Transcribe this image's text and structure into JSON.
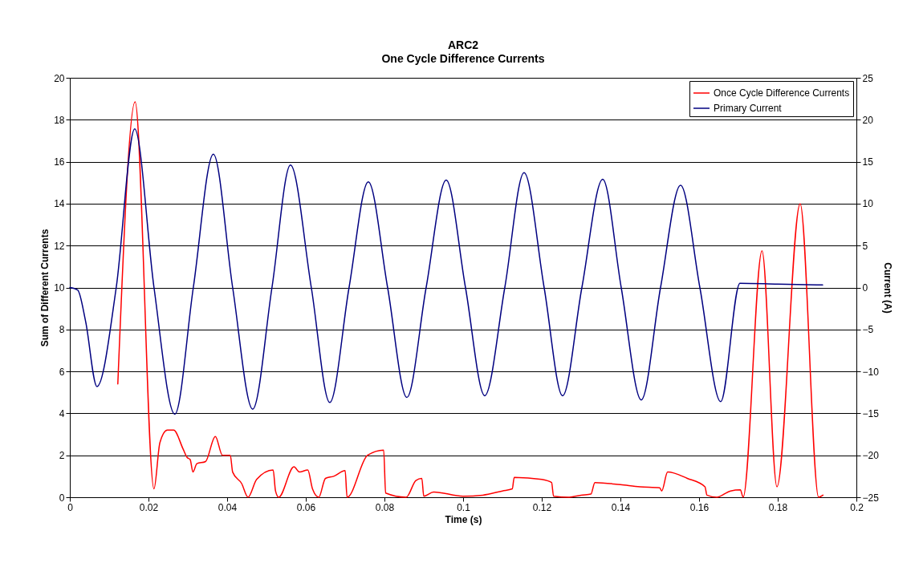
{
  "chart_data": {
    "type": "line",
    "title": "ARC2",
    "subtitle": "One Cycle Difference Currents",
    "xlabel": "Time (s)",
    "ylabel": "Sum of Different Currents",
    "y2label": "Current (A)",
    "xlim": [
      0,
      0.2
    ],
    "xticks": [
      0,
      0.02,
      0.04,
      0.06,
      0.08,
      0.1,
      0.12,
      0.14,
      0.16,
      0.18,
      0.2
    ],
    "ylim": [
      0,
      20
    ],
    "yticks": [
      0,
      2,
      4,
      6,
      8,
      10,
      12,
      14,
      16,
      18,
      20
    ],
    "y2lim": [
      -25,
      25
    ],
    "y2ticks": [
      -25,
      -20,
      -15,
      -10,
      -5,
      0,
      5,
      10,
      15,
      20,
      25
    ],
    "grid": "y",
    "legend": "top right",
    "line_style": "solid",
    "marker": "none",
    "series": [
      {
        "name": "Once Cycle Difference Currents",
        "color": "#ff0000",
        "axis": "y",
        "x": [
          0.0122,
          0.0166,
          0.0214,
          0.0229,
          0.0248,
          0.0264,
          0.0288,
          0.0298,
          0.0306,
          0.0313,
          0.0323,
          0.0345,
          0.037,
          0.0388,
          0.0408,
          0.0414,
          0.0437,
          0.0453,
          0.0475,
          0.0517,
          0.0523,
          0.0531,
          0.057,
          0.0584,
          0.0605,
          0.0617,
          0.0633,
          0.065,
          0.0671,
          0.07,
          0.0705,
          0.0757,
          0.0798,
          0.0803,
          0.0855,
          0.088,
          0.0895,
          0.09,
          0.0925,
          0.1,
          0.105,
          0.11,
          0.1125,
          0.113,
          0.12,
          0.1225,
          0.123,
          0.127,
          0.13,
          0.1325,
          0.1335,
          0.14,
          0.145,
          0.15,
          0.1505,
          0.152,
          0.157,
          0.1615,
          0.162,
          0.1645,
          0.168,
          0.1705,
          0.1712,
          0.176,
          0.1798,
          0.1857,
          0.1904,
          0.1915
        ],
        "values": [
          5.4,
          18.85,
          0.4,
          2.6,
          3.2,
          3.2,
          2.3,
          1.9,
          1.8,
          1.2,
          1.6,
          1.7,
          2.9,
          2.0,
          2.0,
          1.2,
          0.65,
          0,
          0.85,
          1.3,
          0.3,
          0,
          1.45,
          1.2,
          1.3,
          0.4,
          0,
          0.9,
          1.0,
          1.27,
          0,
          2.0,
          2.25,
          0.2,
          0,
          0.8,
          0.9,
          0.05,
          0.25,
          0.05,
          0.1,
          0.3,
          0.4,
          0.95,
          0.85,
          0.7,
          0.05,
          0,
          0.1,
          0.15,
          0.7,
          0.6,
          0.5,
          0.45,
          0.3,
          1.2,
          0.9,
          0.5,
          0.1,
          0,
          0.3,
          0.35,
          0,
          11.75,
          0.5,
          14.0,
          0,
          0.1
        ]
      },
      {
        "name": "Primary Current",
        "color": "#000080",
        "axis": "y2",
        "x": [
          0,
          0.002,
          0.004,
          0.0069,
          0.0118,
          0.0165,
          0.0214,
          0.0267,
          0.0314,
          0.0365,
          0.0414,
          0.0465,
          0.0514,
          0.0561,
          0.0614,
          0.0661,
          0.071,
          0.0759,
          0.0808,
          0.0857,
          0.0906,
          0.0957,
          0.1006,
          0.1055,
          0.1106,
          0.1155,
          0.1206,
          0.1253,
          0.1302,
          0.1355,
          0.1402,
          0.1453,
          0.1502,
          0.1553,
          0.1602,
          0.1655,
          0.1704,
          0.18,
          0.1914
        ],
        "values": [
          0,
          -0.3,
          -4,
          -11.8,
          0,
          18.9,
          0,
          -15.1,
          0,
          15.9,
          0,
          -14.5,
          0,
          14.6,
          0,
          -13.7,
          0,
          12.6,
          0,
          -13.1,
          0,
          12.8,
          0,
          -12.9,
          0,
          13.7,
          0,
          -12.9,
          0,
          12.9,
          0,
          -13.4,
          0,
          12.2,
          0,
          -13.6,
          0.5,
          0.4,
          0.3
        ]
      }
    ]
  }
}
